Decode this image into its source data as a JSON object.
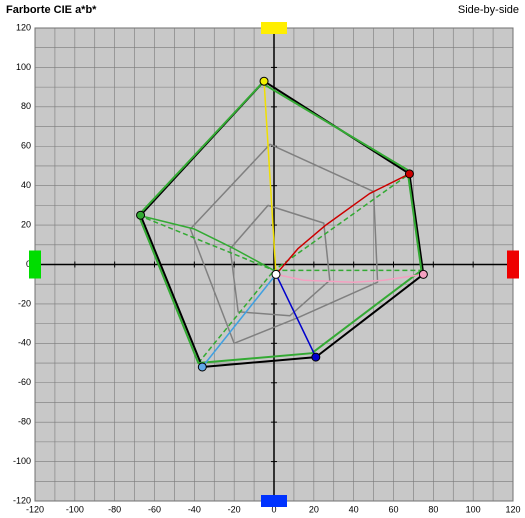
{
  "chart_data": {
    "type": "polygon",
    "title": "Farborte CIE a*b*",
    "subtitle": "Side-by-side",
    "xlim": [
      -120,
      120
    ],
    "ylim": [
      -120,
      120
    ],
    "xticks": [
      -120,
      -100,
      -80,
      -60,
      -40,
      -20,
      0,
      20,
      40,
      60,
      80,
      100,
      120
    ],
    "yticks": [
      -120,
      -100,
      -80,
      -60,
      -40,
      -20,
      0,
      20,
      40,
      60,
      80,
      100,
      120
    ],
    "minor_ticks": [
      -110,
      -90,
      -70,
      -50,
      -30,
      -10,
      10,
      30,
      50,
      70,
      90,
      110
    ],
    "grid": true,
    "background": "#c8c8c8",
    "series": [
      {
        "color": "#808080",
        "closed": true,
        "x": [
          -2,
          50,
          52,
          12,
          -20,
          -42
        ],
        "values": [
          61,
          37,
          -9,
          -27,
          -40,
          18
        ]
      },
      {
        "color": "#808080",
        "closed": true,
        "x": [
          -3,
          25,
          28,
          8,
          -18,
          -22
        ],
        "values": [
          30,
          21,
          -8,
          -26,
          -24,
          8
        ]
      },
      {
        "color": "#33aa33",
        "dash": true,
        "x": [
          -68,
          0,
          68
        ],
        "values": [
          25,
          -3,
          46
        ]
      },
      {
        "color": "#33aa33",
        "dash": true,
        "x": [
          -38,
          0,
          75
        ],
        "values": [
          -50,
          -3,
          -3
        ]
      },
      {
        "color": "#000000",
        "closed": true,
        "width": 2,
        "x": [
          -5,
          68,
          75,
          21,
          -36,
          -67
        ],
        "values": [
          93,
          46,
          -5,
          -47,
          -52,
          25
        ]
      },
      {
        "color": "#33aa33",
        "closed": true,
        "width": 2,
        "x": [
          -6,
          67,
          74,
          19,
          -38,
          -68
        ],
        "values": [
          92,
          48,
          -3,
          -45,
          -50,
          25
        ]
      },
      {
        "color": "#f0e000",
        "x": [
          1,
          -5
        ],
        "values": [
          -5,
          93
        ]
      },
      {
        "color": "#cc0000",
        "x": [
          1,
          12,
          26,
          48,
          68
        ],
        "values": [
          -5,
          8,
          20,
          36,
          46
        ]
      },
      {
        "color": "#f4a0c0",
        "x": [
          1,
          15,
          40,
          55,
          75
        ],
        "values": [
          -5,
          -8,
          -9,
          -8,
          -5
        ]
      },
      {
        "color": "#0000cc",
        "x": [
          1,
          21
        ],
        "values": [
          -5,
          -47
        ]
      },
      {
        "color": "#40a0e0",
        "x": [
          1,
          -36
        ],
        "values": [
          -5,
          -52
        ]
      },
      {
        "color": "#33aa33",
        "x": [
          -68,
          -40,
          -20,
          0
        ],
        "values": [
          25,
          18,
          8,
          -3
        ]
      }
    ],
    "points": {
      "x": [
        -5,
        68,
        75,
        21,
        -36,
        -67,
        1
      ],
      "values": [
        93,
        46,
        -5,
        -47,
        -52,
        25,
        -5
      ],
      "colors": [
        "#f0f000",
        "#cc0000",
        "#f4a0c0",
        "#0000cc",
        "#60a8e8",
        "#33aa33",
        "#ffffff"
      ]
    },
    "patches": {
      "x": [
        0,
        120,
        -120,
        0
      ],
      "values": [
        120,
        0,
        0,
        -120
      ],
      "colors": [
        "#ffee00",
        "#ee0000",
        "#00dd00",
        "#0033ff"
      ]
    }
  }
}
